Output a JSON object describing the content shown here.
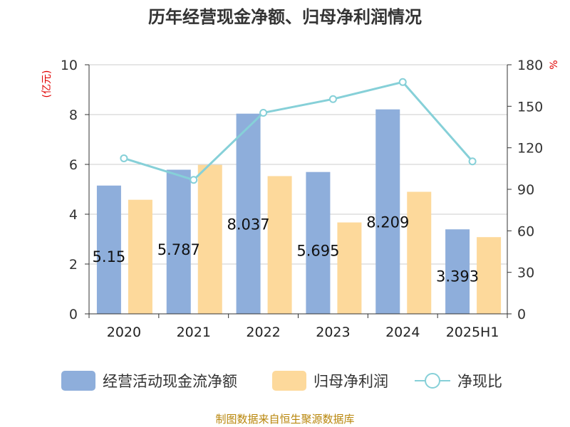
{
  "chart_data": {
    "type": "bar",
    "title": "历年经营现金净额、归母净利润情况",
    "categories": [
      "2020",
      "2021",
      "2022",
      "2023",
      "2024",
      "2025H1"
    ],
    "series": [
      {
        "name": "经营活动现金流净额",
        "type": "bar",
        "axis": "left",
        "color": "#8eaedb",
        "values": [
          5.15,
          5.787,
          8.037,
          5.695,
          8.209,
          3.393
        ]
      },
      {
        "name": "归母净利润",
        "type": "bar",
        "axis": "left",
        "color": "#fdd99b",
        "values": [
          4.58,
          5.98,
          5.53,
          3.67,
          4.9,
          3.08
        ]
      },
      {
        "name": "净现比",
        "type": "line",
        "axis": "right",
        "color": "#86d0d8",
        "values": [
          112.4,
          96.8,
          145.3,
          155.2,
          167.5,
          110.2
        ]
      }
    ],
    "bar_labels": [
      "5.15",
      "5.787",
      "8.037",
      "5.695",
      "8.209",
      "3.393"
    ],
    "left_axis": {
      "label": "(亿元)",
      "ylim": [
        0,
        10
      ],
      "ticks": [
        "0",
        "2",
        "4",
        "6",
        "8",
        "10"
      ]
    },
    "right_axis": {
      "label": "%",
      "ylim": [
        0,
        180
      ],
      "ticks": [
        "0",
        "30",
        "60",
        "90",
        "120",
        "150",
        "180"
      ]
    },
    "grid": true,
    "legend_position": "bottom"
  },
  "source": "制图数据来自恒生聚源数据库"
}
